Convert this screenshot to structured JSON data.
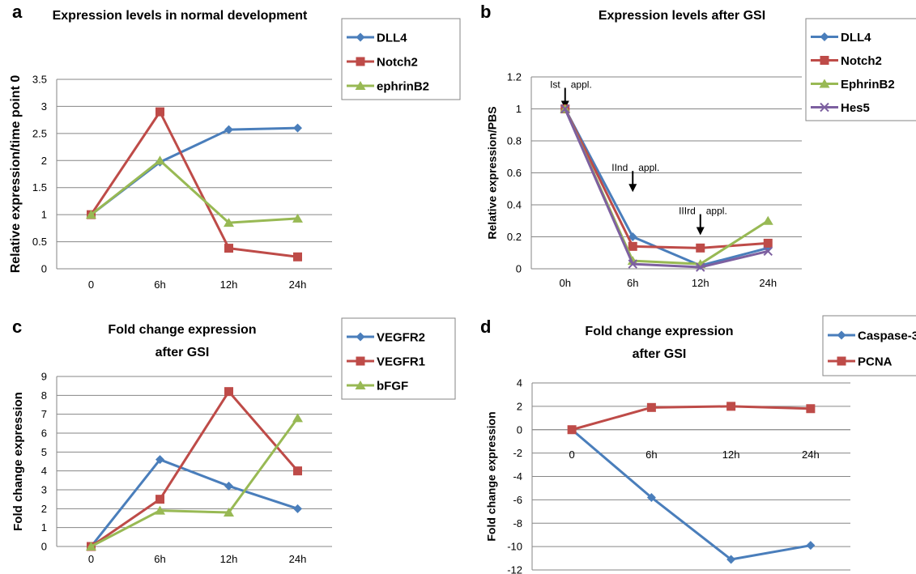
{
  "chart_data": [
    {
      "panel": "a",
      "type": "line",
      "title": "Expression levels in normal development",
      "ylabel": "Relative expression/time point 0",
      "xlabel": "",
      "categories": [
        "0",
        "6h",
        "12h",
        "24h"
      ],
      "ylim": [
        0,
        3.5
      ],
      "yticks": [
        "0",
        "0.5",
        "1",
        "1.5",
        "2",
        "2.5",
        "3",
        "3.5"
      ],
      "grid": true,
      "legend_position": "top-right",
      "series": [
        {
          "name": "DLL4",
          "color": "#4a7ebb",
          "marker": "diamond",
          "values": [
            1.0,
            1.97,
            2.57,
            2.6
          ]
        },
        {
          "name": "Notch2",
          "color": "#be4b48",
          "marker": "square",
          "values": [
            1.0,
            2.9,
            0.38,
            0.22
          ]
        },
        {
          "name": "ephrinB2",
          "color": "#98b954",
          "marker": "triangle",
          "values": [
            1.0,
            2.0,
            0.85,
            0.93
          ]
        }
      ]
    },
    {
      "panel": "b",
      "type": "line",
      "title": "Expression levels after GSI",
      "ylabel": "Relative expression/PBS",
      "xlabel": "",
      "categories": [
        "0h",
        "6h",
        "12h",
        "24h"
      ],
      "ylim": [
        0,
        1.2
      ],
      "yticks": [
        "0",
        "0.2",
        "0.4",
        "0.6",
        "0.8",
        "1",
        "1.2"
      ],
      "grid": true,
      "legend_position": "top-right",
      "annotations": [
        {
          "left": "Ist",
          "right": "appl.",
          "x_index": 0,
          "y_value": 1.0
        },
        {
          "left": "IInd",
          "right": "appl.",
          "x_index": 1,
          "y_value": 0.48
        },
        {
          "left": "IIIrd",
          "right": "appl.",
          "x_index": 2,
          "y_value": 0.21
        }
      ],
      "series": [
        {
          "name": "DLL4",
          "color": "#4a7ebb",
          "marker": "diamond",
          "values": [
            1.0,
            0.2,
            0.02,
            0.13
          ]
        },
        {
          "name": "Notch2",
          "color": "#be4b48",
          "marker": "square",
          "values": [
            1.0,
            0.14,
            0.13,
            0.16
          ]
        },
        {
          "name": "EphrinB2",
          "color": "#98b954",
          "marker": "triangle",
          "values": [
            1.0,
            0.05,
            0.03,
            0.3
          ]
        },
        {
          "name": "Hes5",
          "color": "#7d60a0",
          "marker": "x",
          "values": [
            1.0,
            0.03,
            0.01,
            0.11
          ]
        }
      ]
    },
    {
      "panel": "c",
      "type": "line",
      "title": [
        "Fold change expression",
        "after GSI"
      ],
      "ylabel": "Fold change expression",
      "xlabel": "",
      "categories": [
        "0",
        "6h",
        "12h",
        "24h"
      ],
      "ylim": [
        0,
        9
      ],
      "yticks": [
        "0",
        "1",
        "2",
        "3",
        "4",
        "5",
        "6",
        "7",
        "8",
        "9"
      ],
      "grid": true,
      "legend_position": "top-right",
      "series": [
        {
          "name": "VEGFR2",
          "color": "#4a7ebb",
          "marker": "diamond",
          "values": [
            0,
            4.6,
            3.2,
            2.0
          ]
        },
        {
          "name": "VEGFR1",
          "color": "#be4b48",
          "marker": "square",
          "values": [
            0,
            2.5,
            8.2,
            4.0
          ]
        },
        {
          "name": "bFGF",
          "color": "#98b954",
          "marker": "triangle",
          "values": [
            0,
            1.9,
            1.8,
            6.8
          ]
        }
      ]
    },
    {
      "panel": "d",
      "type": "line",
      "title": [
        "Fold change expression",
        "after GSI"
      ],
      "ylabel": "Fold change expression",
      "xlabel": "",
      "categories": [
        "0",
        "6h",
        "12h",
        "24h"
      ],
      "ylim": [
        -12,
        4
      ],
      "yticks": [
        "-12",
        "-10",
        "-8",
        "-6",
        "-4",
        "-2",
        "0",
        "2",
        "4"
      ],
      "grid": true,
      "legend_position": "top-right",
      "series": [
        {
          "name": "Caspase-3",
          "color": "#4a7ebb",
          "marker": "diamond",
          "values": [
            0,
            -5.8,
            -11.1,
            -9.9
          ]
        },
        {
          "name": "PCNA",
          "color": "#be4b48",
          "marker": "square",
          "values": [
            0,
            1.9,
            2.0,
            1.8
          ]
        }
      ]
    }
  ]
}
